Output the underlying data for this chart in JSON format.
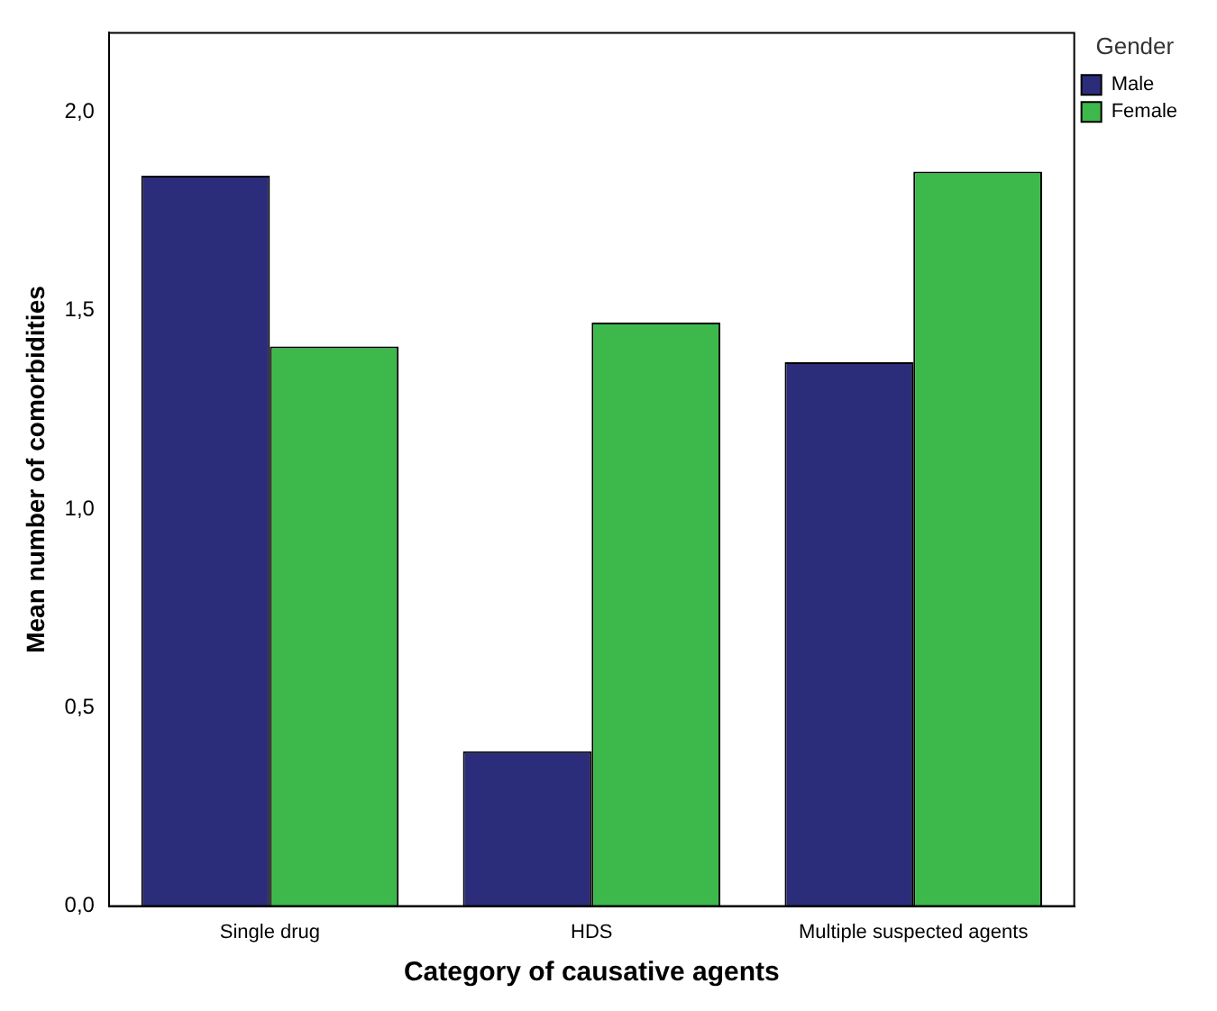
{
  "chart_data": {
    "type": "bar",
    "xlabel": "Category of causative agents",
    "ylabel": "Mean number of comorbidities",
    "legend_title": "Gender",
    "categories": [
      "Single drug",
      "HDS",
      "Multiple suspected agents"
    ],
    "series": [
      {
        "name": "Male",
        "color": "#2b2d7a",
        "values": [
          1.84,
          0.39,
          1.37
        ]
      },
      {
        "name": "Female",
        "color": "#3cb94a",
        "values": [
          1.41,
          1.47,
          1.85
        ]
      }
    ],
    "ylim": [
      0,
      2.2
    ],
    "yticks": [
      {
        "value": 0,
        "label": "0,0"
      },
      {
        "value": 0.5,
        "label": "0,5"
      },
      {
        "value": 1,
        "label": "1,0"
      },
      {
        "value": 1.5,
        "label": "1,5"
      },
      {
        "value": 2,
        "label": "2,0"
      }
    ],
    "grid": false,
    "legend": "top right"
  }
}
